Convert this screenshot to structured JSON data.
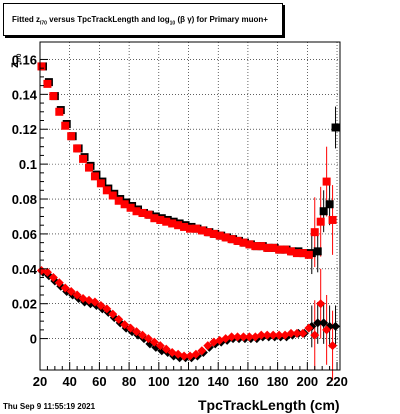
{
  "title": {
    "prefix": "Fitted  z",
    "sub1": "I70",
    "mid": " versus TpcTrackLength and log",
    "sub2": "10",
    "suffix": "(β  γ) for Primary muon+"
  },
  "footer": {
    "timestamp": "Thu Sep  9 11:55:19 2021"
  },
  "chart_data": {
    "type": "scatter",
    "title": "Fitted  z_I70 versus TpcTrackLength and log_10(β  γ) for Primary muon+",
    "xlabel": "TpcTrackLength (cm)",
    "ylabel": "z_I70",
    "xlim": [
      20,
      222
    ],
    "ylim": [
      -0.018,
      0.17
    ],
    "xticks": [
      20,
      40,
      60,
      80,
      100,
      120,
      140,
      160,
      180,
      200,
      220
    ],
    "yticks": [
      0,
      0.02,
      0.04,
      0.06,
      0.08,
      0.1,
      0.12,
      0.14,
      0.16
    ],
    "ytick_labels": [
      "0",
      "0.02",
      "0.04",
      "0.06",
      "0.08",
      "0.1",
      "0.12",
      "0.14",
      "0.16"
    ],
    "grid": true,
    "colors": {
      "red": "#ff0000",
      "black": "#000000"
    },
    "series": [
      {
        "marker": "square",
        "color": "#000000",
        "x": [
          22,
          26,
          30,
          34,
          38,
          42,
          46,
          50,
          54,
          58,
          62,
          66,
          70,
          74,
          78,
          82,
          86,
          90,
          94,
          98,
          102,
          106,
          110,
          114,
          118,
          122,
          126,
          130,
          134,
          138,
          142,
          146,
          150,
          154,
          158,
          162,
          166,
          170,
          174,
          178,
          182,
          186,
          190,
          194,
          198,
          203,
          207,
          211,
          215,
          219
        ],
        "y": [
          0.156,
          0.147,
          0.139,
          0.131,
          0.123,
          0.116,
          0.109,
          0.104,
          0.099,
          0.094,
          0.09,
          0.086,
          0.083,
          0.08,
          0.078,
          0.076,
          0.074,
          0.072,
          0.071,
          0.07,
          0.069,
          0.068,
          0.067,
          0.066,
          0.065,
          0.064,
          0.063,
          0.062,
          0.061,
          0.06,
          0.059,
          0.058,
          0.057,
          0.056,
          0.055,
          0.054,
          0.053,
          0.053,
          0.052,
          0.052,
          0.051,
          0.051,
          0.05,
          0.05,
          0.049,
          0.049,
          0.05,
          0.073,
          0.077,
          0.121
        ]
      },
      {
        "marker": "square",
        "color": "#ff0000",
        "x": [
          21,
          25,
          29,
          33,
          37,
          41,
          45,
          49,
          53,
          57,
          61,
          65,
          69,
          73,
          77,
          81,
          85,
          89,
          93,
          97,
          101,
          105,
          109,
          113,
          117,
          121,
          125,
          129,
          133,
          137,
          141,
          145,
          149,
          153,
          157,
          161,
          165,
          169,
          173,
          177,
          181,
          185,
          189,
          193,
          197,
          201,
          205,
          209,
          213,
          217
        ],
        "y": [
          0.156,
          0.146,
          0.139,
          0.13,
          0.122,
          0.116,
          0.109,
          0.103,
          0.098,
          0.093,
          0.089,
          0.085,
          0.082,
          0.079,
          0.077,
          0.075,
          0.073,
          0.072,
          0.071,
          0.069,
          0.068,
          0.067,
          0.066,
          0.065,
          0.064,
          0.063,
          0.063,
          0.062,
          0.061,
          0.06,
          0.059,
          0.058,
          0.057,
          0.056,
          0.055,
          0.054,
          0.053,
          0.053,
          0.052,
          0.052,
          0.051,
          0.051,
          0.05,
          0.049,
          0.049,
          0.048,
          0.061,
          0.067,
          0.09,
          0.068
        ]
      },
      {
        "marker": "diamond",
        "color": "#000000",
        "x": [
          22,
          26,
          30,
          34,
          38,
          42,
          46,
          50,
          54,
          58,
          62,
          66,
          70,
          74,
          78,
          82,
          86,
          90,
          94,
          98,
          102,
          106,
          110,
          114,
          118,
          122,
          126,
          130,
          134,
          138,
          142,
          146,
          150,
          154,
          158,
          162,
          166,
          170,
          174,
          178,
          182,
          186,
          190,
          194,
          198,
          203,
          207,
          211,
          215,
          219
        ],
        "y": [
          0.038,
          0.036,
          0.033,
          0.03,
          0.027,
          0.025,
          0.023,
          0.021,
          0.02,
          0.019,
          0.017,
          0.015,
          0.012,
          0.009,
          0.006,
          0.004,
          0.002,
          0.0,
          -0.003,
          -0.005,
          -0.007,
          -0.008,
          -0.01,
          -0.011,
          -0.011,
          -0.011,
          -0.01,
          -0.008,
          -0.005,
          -0.003,
          -0.002,
          -0.001,
          0.0,
          0.0,
          0.0,
          0.0,
          0.0,
          0.001,
          0.001,
          0.001,
          0.001,
          0.001,
          0.002,
          0.003,
          0.003,
          0.007,
          0.009,
          0.009,
          0.007,
          0.007
        ]
      },
      {
        "marker": "diamond",
        "color": "#ff0000",
        "x": [
          21,
          25,
          29,
          33,
          37,
          41,
          45,
          49,
          53,
          57,
          61,
          65,
          69,
          73,
          77,
          81,
          85,
          89,
          93,
          97,
          101,
          105,
          109,
          113,
          117,
          121,
          125,
          129,
          133,
          137,
          141,
          145,
          149,
          153,
          157,
          161,
          165,
          169,
          173,
          177,
          181,
          185,
          189,
          193,
          197,
          201,
          205,
          209,
          213,
          217
        ],
        "y": [
          0.039,
          0.038,
          0.035,
          0.032,
          0.029,
          0.027,
          0.025,
          0.023,
          0.022,
          0.021,
          0.019,
          0.017,
          0.014,
          0.011,
          0.008,
          0.006,
          0.004,
          0.002,
          0.0,
          -0.002,
          -0.004,
          -0.006,
          -0.008,
          -0.009,
          -0.01,
          -0.01,
          -0.009,
          -0.007,
          -0.004,
          -0.002,
          -0.001,
          0.0,
          0.001,
          0.001,
          0.001,
          0.001,
          0.001,
          0.002,
          0.002,
          0.002,
          0.002,
          0.002,
          0.003,
          0.003,
          0.003,
          0.006,
          0.002,
          0.02,
          0.005,
          -0.004
        ]
      }
    ]
  }
}
